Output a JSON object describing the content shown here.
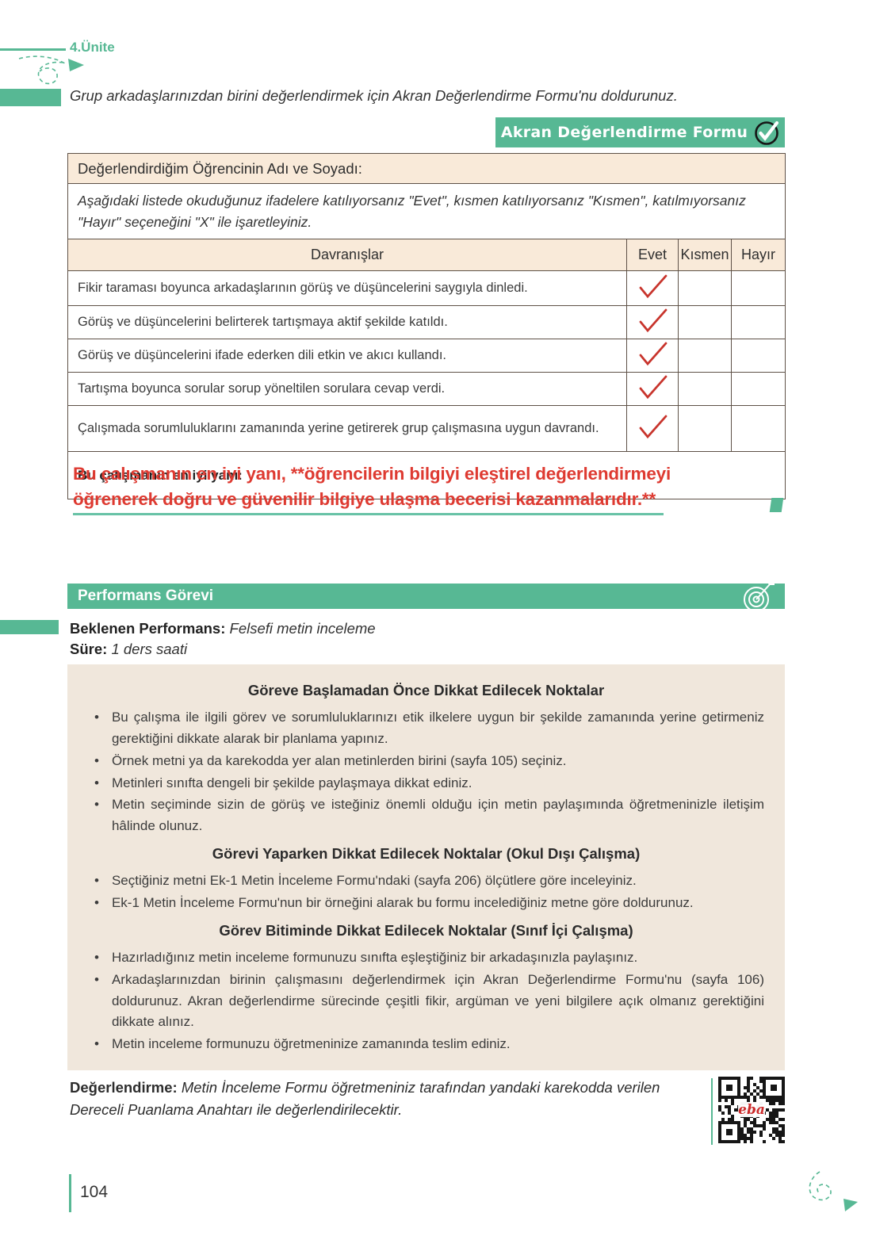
{
  "page": {
    "unit_label": "4.Ünite",
    "page_number": "104",
    "intro_text": "Grup arkadaşlarınızdan birini değerlendirmek için Akran Değerlendirme Formu'nu doldurunuz."
  },
  "peer_form": {
    "banner_title": "Akran Değerlendirme Formu",
    "name_row_label": "Değerlendirdiğim Öğrencinin Adı ve Soyadı:",
    "instructions": "Aşağıdaki listede okuduğunuz ifadelere katılıyorsanız \"Evet\", kısmen katılıyorsanız \"Kısmen\", katılmıyorsanız \"Hayır\" seçeneğini \"X\" ile işaretleyiniz.",
    "columns": [
      "Davranışlar",
      "Evet",
      "Kısmen",
      "Hayır"
    ],
    "rows": [
      {
        "behavior": "Fikir taraması boyunca arkadaşlarının görüş ve düşüncelerini saygıyla dinledi.",
        "checked": "evet"
      },
      {
        "behavior": "Görüş ve düşüncelerini belirterek tartışmaya aktif şekilde katıldı.",
        "checked": "evet"
      },
      {
        "behavior": "Görüş ve düşüncelerini ifade ederken dili etkin ve akıcı kullandı.",
        "checked": "evet"
      },
      {
        "behavior": "Tartışma boyunca sorular sorup yöneltilen sorulara cevap verdi.",
        "checked": "evet"
      },
      {
        "behavior": "Çalışmada sorumluluklarını zamanında yerine getirerek grup çalışmasına uygun davrandı.",
        "checked": "evet"
      }
    ],
    "open_question_label": "Bu çalışmanın en iyi yanı:",
    "answer_lines": [
      "Bu çalışmanın en iyi yanı, **öğrencilerin bilgiyi eleştirel değerlendirmeyi",
      "öğrenerek doğru ve güvenilir bilgiye ulaşma becerisi kazanmalarıdır.**"
    ]
  },
  "performance_task": {
    "banner_title": "Performans Görevi",
    "expected_label": "Beklenen Performans:",
    "expected_value": "Felsefi metin inceleme",
    "duration_label": "Süre:",
    "duration_value": "1 ders saati",
    "sections": [
      {
        "title": "Göreve Başlamadan Önce Dikkat Edilecek Noktalar",
        "bullets": [
          "Bu çalışma ile ilgili görev ve sorumluluklarınızı etik ilkelere uygun bir şekilde zamanında yerine getirmeniz gerektiğini dikkate alarak bir planlama yapınız.",
          "Örnek metni ya da karekodda yer alan metinlerden birini (sayfa 105) seçiniz.",
          "Metinleri sınıfta dengeli bir şekilde paylaşmaya dikkat ediniz.",
          "Metin seçiminde sizin de görüş ve isteğiniz önemli olduğu için metin paylaşımında öğretmeninizle iletişim hâlinde olunuz."
        ]
      },
      {
        "title": "Görevi Yaparken Dikkat Edilecek Noktalar (Okul Dışı Çalışma)",
        "bullets": [
          "Seçtiğiniz metni Ek-1 Metin İnceleme Formu'ndaki (sayfa 206) ölçütlere göre inceleyiniz.",
          "Ek-1 Metin İnceleme Formu'nun bir örneğini alarak bu formu incelediğiniz metne göre doldurunuz."
        ]
      },
      {
        "title": "Görev Bitiminde Dikkat Edilecek Noktalar (Sınıf İçi Çalışma)",
        "bullets": [
          "Hazırladığınız metin inceleme formunuzu sınıfta eşleştiğiniz bir arkadaşınızla paylaşınız.",
          "Arkadaşlarınızdan birinin çalışmasını değerlendirmek için Akran Değerlendirme Formu'nu (sayfa 106) doldurunuz. Akran değerlendirme sürecinde çeşitli fikir, argüman ve yeni bilgilere açık olmanız gerektiğini dikkate alınız.",
          "Metin inceleme formunuzu öğretmeninize zamanında teslim ediniz."
        ]
      }
    ]
  },
  "evaluation": {
    "label": "Değerlendirme:",
    "text": "Metin İnceleme Formu öğretmeniniz tarafından yandaki karekodda verilen Dereceli Puanlama Anahtarı ile değerlendirilecektir.",
    "qr_logo": "eba"
  },
  "colors": {
    "accent_green": "#57b894",
    "answer_red": "#de3a31",
    "underline_teal": "#68c2a6",
    "table_beige": "#f9ead9",
    "box_beige": "#f0e7dc"
  }
}
